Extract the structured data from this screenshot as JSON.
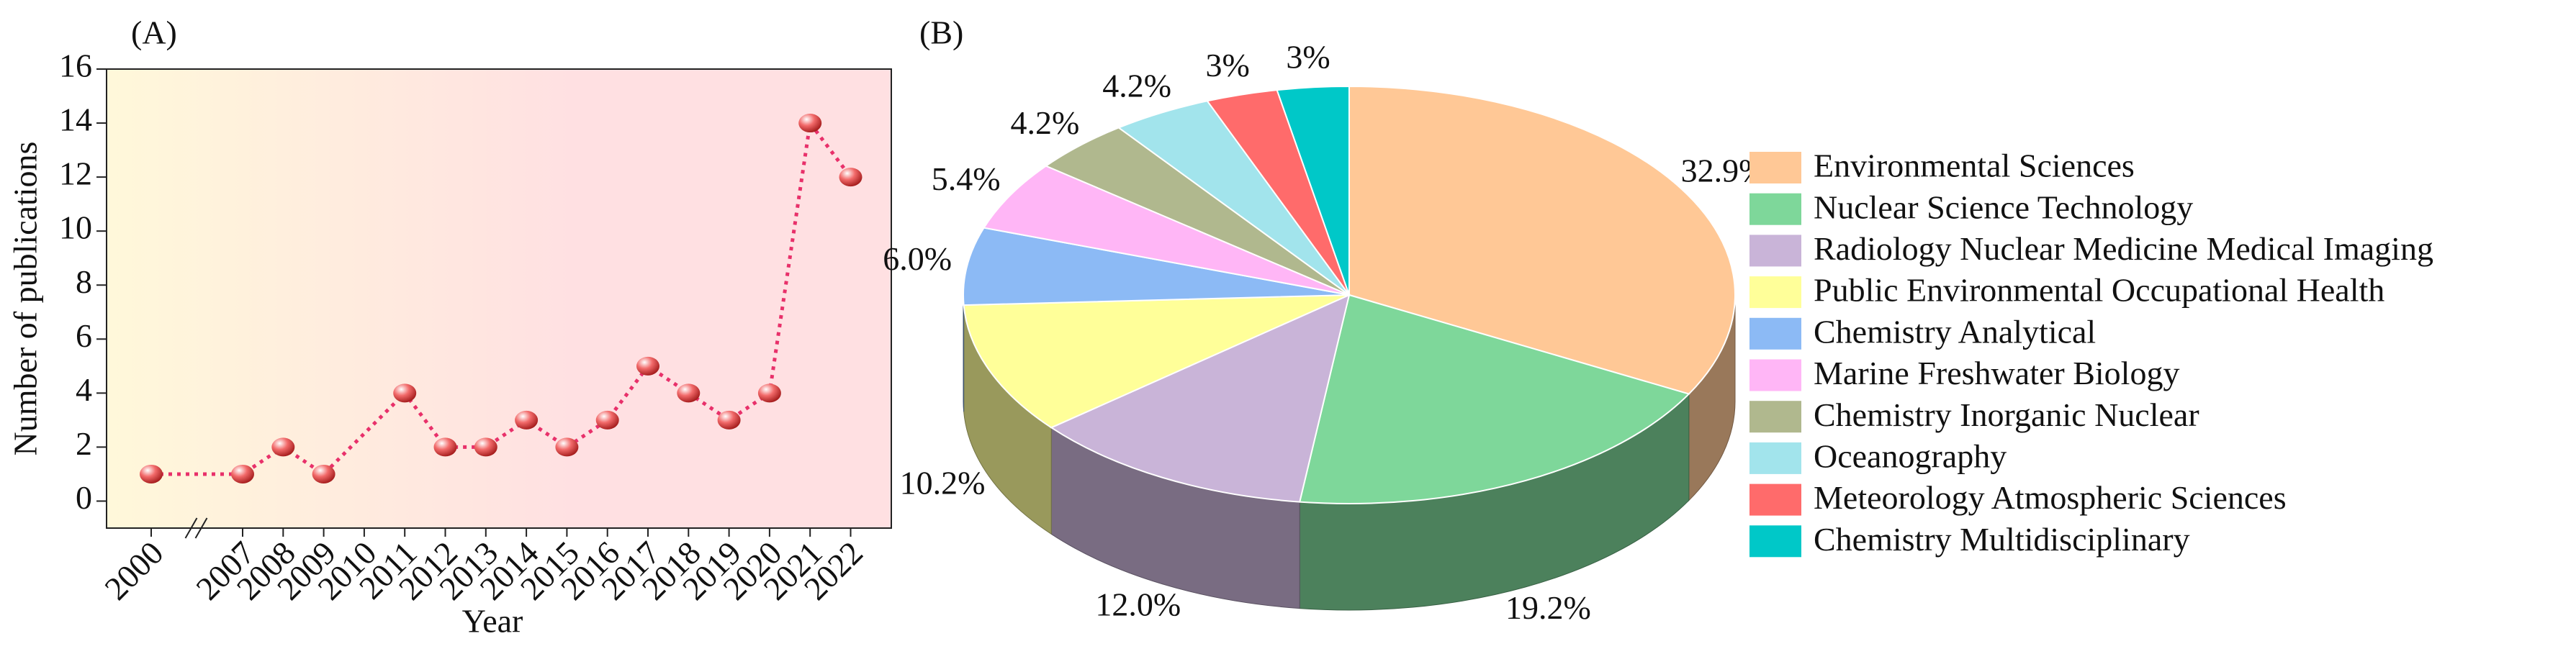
{
  "chart_data": [
    {
      "type": "line",
      "title": "(A)",
      "x_label": "Year",
      "y_label": "Number of publications",
      "categories": [
        "2000",
        "2007",
        "2008",
        "2009",
        "2010",
        "2011",
        "2012",
        "2013",
        "2014",
        "2015",
        "2016",
        "2017",
        "2018",
        "2019",
        "2020",
        "2021",
        "2022"
      ],
      "values": [
        1,
        1,
        2,
        1,
        null,
        4,
        2,
        2,
        3,
        2,
        3,
        5,
        4,
        3,
        4,
        14,
        12
      ],
      "color": "#E8306A",
      "marker_color": "#F26A6A",
      "background": [
        "#FFF8DA",
        "#FFE0E2"
      ],
      "axis_break": true,
      "ylim": [
        -1,
        16
      ],
      "yticks": [
        0,
        2,
        4,
        6,
        8,
        10,
        12,
        14,
        16
      ]
    },
    {
      "type": "pie",
      "three_d": true,
      "title": "(B)",
      "legend": "right",
      "categories": [
        "Environmental Sciences",
        "Nuclear Science Technology",
        "Radiology Nuclear Medicine Medical Imaging",
        "Public Environmental Occupational Health",
        "Chemistry Analytical",
        "Marine Freshwater Biology",
        "Chemistry Inorganic Nuclear",
        "Oceanography",
        "Meteorology Atmospheric Sciences",
        "Chemistry Multidisciplinary"
      ],
      "values": [
        32.9,
        19.2,
        12.0,
        10.2,
        6.0,
        5.4,
        4.2,
        4.2,
        3,
        3
      ],
      "value_labels": [
        "32.9%",
        "19.2%",
        "12.0%",
        "10.2%",
        "6.0%",
        "5.4%",
        "4.2%",
        "4.2%",
        "3%",
        "3%"
      ],
      "colors": [
        "#FFC896",
        "#7ED79A",
        "#C9B4D8",
        "#FFFF99",
        "#8CBAF5",
        "#FFB6F6",
        "#B0B88E",
        "#A2E4EC",
        "#FF6B6B",
        "#00C8C8"
      ]
    }
  ]
}
